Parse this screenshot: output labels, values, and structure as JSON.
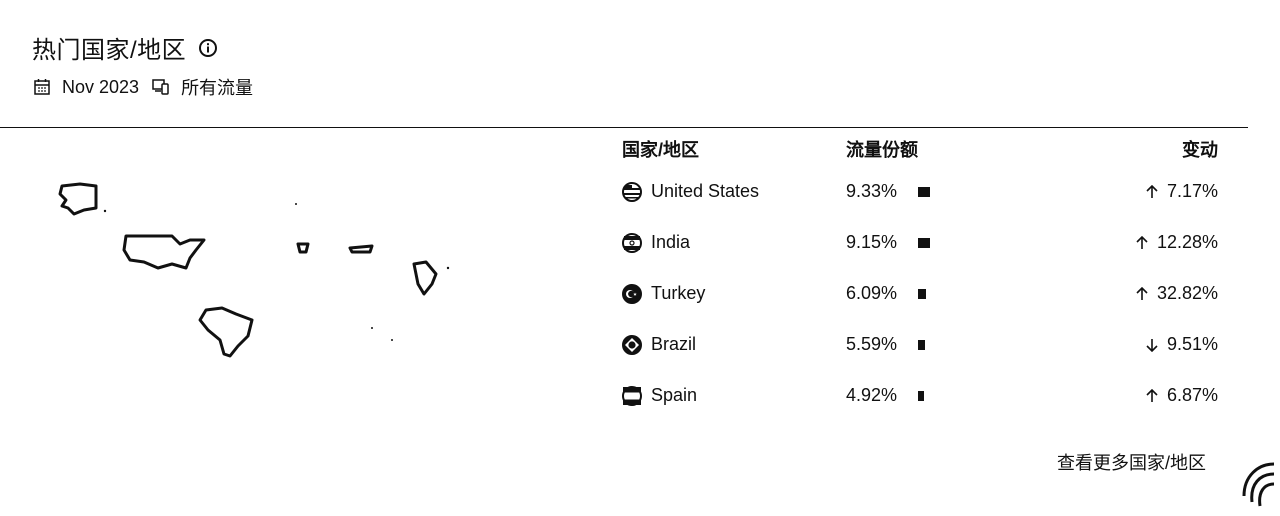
{
  "header": {
    "title": "热门国家/地区",
    "date": "Nov 2023",
    "traffic": "所有流量"
  },
  "table": {
    "columns": [
      "国家/地区",
      "流量份额",
      "变动"
    ],
    "rows": [
      {
        "country": "United States",
        "share": "9.33%",
        "share_value": 9.33,
        "change": "7.17%",
        "direction": "up"
      },
      {
        "country": "India",
        "share": "9.15%",
        "share_value": 9.15,
        "change": "12.28%",
        "direction": "up"
      },
      {
        "country": "Turkey",
        "share": "6.09%",
        "share_value": 6.09,
        "change": "32.82%",
        "direction": "up"
      },
      {
        "country": "Brazil",
        "share": "5.59%",
        "share_value": 5.59,
        "change": "9.51%",
        "direction": "down"
      },
      {
        "country": "Spain",
        "share": "4.92%",
        "share_value": 4.92,
        "change": "6.87%",
        "direction": "up"
      }
    ]
  },
  "more_link": "查看更多国家/地区"
}
